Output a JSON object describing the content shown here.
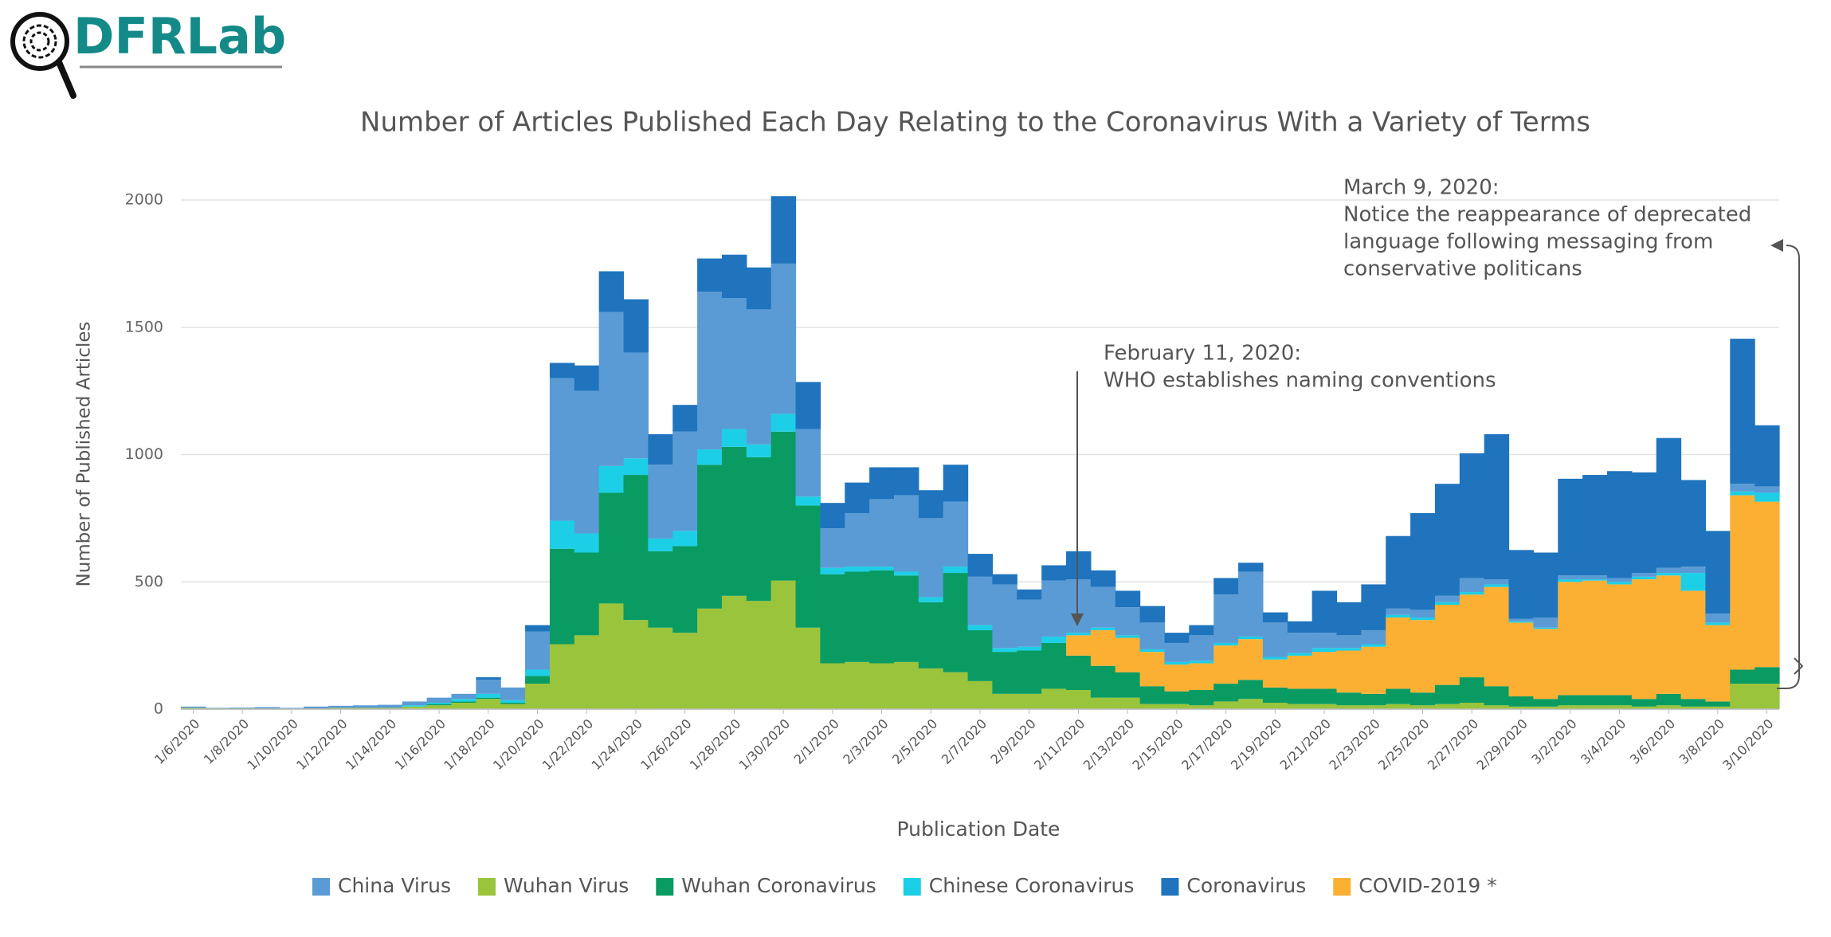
{
  "logo": "DFRLab",
  "chart_data": {
    "type": "stacked-step-area",
    "title": "Number of Articles Published Each Day Relating to the Coronavirus With a Variety of Terms",
    "xlabel": "Publication Date",
    "ylabel": "Number of Published Articles",
    "categories": [
      "1/6/2020",
      null,
      "1/8/2020",
      null,
      "1/10/2020",
      null,
      "1/12/2020",
      null,
      "1/14/2020",
      null,
      "1/16/2020",
      null,
      "1/18/2020",
      null,
      "1/20/2020",
      null,
      "1/22/2020",
      null,
      "1/24/2020",
      null,
      "1/26/2020",
      null,
      "1/28/2020",
      null,
      "1/30/2020",
      null,
      "2/1/2020",
      null,
      "2/3/2020",
      null,
      "2/5/2020",
      null,
      "2/7/2020",
      null,
      "2/9/2020",
      null,
      "2/11/2020",
      null,
      "2/13/2020",
      null,
      "2/15/2020",
      null,
      "2/17/2020",
      null,
      "2/19/2020",
      null,
      "2/21/2020",
      null,
      "2/23/2020",
      null,
      "2/25/2020",
      null,
      "2/27/2020",
      null,
      "2/29/2020",
      null,
      "3/2/2020",
      null,
      "3/4/2020",
      null,
      "3/6/2020",
      null,
      "3/8/2020",
      null,
      "3/10/2020"
    ],
    "series": [
      {
        "name": "China Virus",
        "color": "#5b9bd5",
        "values": [
          5,
          2,
          3,
          5,
          3,
          7,
          8,
          10,
          12,
          15,
          20,
          20,
          55,
          50,
          150,
          560,
          560,
          605,
          415,
          290,
          390,
          620,
          515,
          530,
          590,
          265,
          155,
          210,
          265,
          300,
          310,
          255,
          190,
          250,
          185,
          220,
          210,
          160,
          110,
          105,
          75,
          100,
          190,
          255,
          135,
          80,
          60,
          50,
          55,
          25,
          30,
          25,
          55,
          20,
          10,
          40,
          15,
          15,
          15,
          15,
          20,
          25,
          35,
          30,
          25
        ]
      },
      {
        "name": "Wuhan Virus",
        "color": "#9ac43b",
        "values": [
          5,
          3,
          3,
          3,
          2,
          3,
          5,
          5,
          5,
          10,
          15,
          25,
          40,
          20,
          100,
          255,
          290,
          415,
          350,
          320,
          300,
          395,
          445,
          425,
          505,
          320,
          180,
          185,
          180,
          185,
          160,
          145,
          110,
          60,
          60,
          80,
          75,
          45,
          45,
          20,
          20,
          15,
          30,
          40,
          25,
          20,
          20,
          15,
          15,
          20,
          15,
          20,
          25,
          15,
          10,
          10,
          15,
          15,
          15,
          10,
          15,
          10,
          10,
          100,
          100
        ]
      },
      {
        "name": "Wuhan Coronavirus",
        "color": "#0a9b63",
        "values": [
          0,
          0,
          0,
          0,
          0,
          0,
          0,
          0,
          0,
          0,
          5,
          5,
          5,
          5,
          30,
          375,
          325,
          435,
          570,
          300,
          340,
          565,
          585,
          565,
          585,
          480,
          350,
          355,
          365,
          340,
          260,
          390,
          200,
          165,
          170,
          180,
          135,
          125,
          100,
          70,
          50,
          60,
          70,
          75,
          60,
          60,
          60,
          50,
          45,
          60,
          50,
          75,
          100,
          75,
          40,
          30,
          40,
          40,
          40,
          30,
          45,
          30,
          20,
          55,
          65
        ]
      },
      {
        "name": "Chinese Coronavirus",
        "color": "#1ccfe6",
        "values": [
          0,
          0,
          0,
          0,
          0,
          0,
          0,
          0,
          0,
          5,
          5,
          10,
          15,
          10,
          25,
          110,
          75,
          105,
          65,
          50,
          60,
          60,
          70,
          50,
          70,
          35,
          25,
          20,
          15,
          15,
          20,
          25,
          20,
          15,
          15,
          25,
          10,
          10,
          10,
          10,
          10,
          10,
          10,
          10,
          10,
          10,
          15,
          10,
          10,
          10,
          10,
          10,
          10,
          10,
          5,
          5,
          10,
          5,
          10,
          10,
          10,
          70,
          10,
          15,
          35
        ]
      },
      {
        "name": "Coronavirus",
        "color": "#1f74bd",
        "values": [
          0,
          0,
          0,
          0,
          0,
          0,
          0,
          0,
          0,
          0,
          0,
          0,
          10,
          0,
          25,
          60,
          100,
          160,
          210,
          120,
          105,
          130,
          170,
          165,
          265,
          185,
          100,
          120,
          125,
          110,
          110,
          145,
          90,
          40,
          40,
          60,
          110,
          65,
          65,
          65,
          40,
          40,
          65,
          35,
          40,
          45,
          165,
          130,
          180,
          285,
          380,
          440,
          490,
          570,
          270,
          255,
          380,
          395,
          420,
          395,
          510,
          340,
          325,
          570,
          240
        ]
      },
      {
        "name": "COVID-2019 *",
        "color": "#fbb034",
        "values": [
          0,
          0,
          0,
          0,
          0,
          0,
          0,
          0,
          0,
          0,
          0,
          0,
          0,
          0,
          0,
          0,
          0,
          0,
          0,
          0,
          0,
          0,
          0,
          0,
          0,
          0,
          0,
          0,
          0,
          0,
          0,
          0,
          0,
          0,
          0,
          0,
          80,
          140,
          135,
          135,
          105,
          105,
          150,
          160,
          110,
          130,
          145,
          165,
          185,
          280,
          285,
          315,
          325,
          390,
          290,
          275,
          445,
          450,
          435,
          470,
          465,
          425,
          300,
          685,
          650
        ]
      }
    ],
    "ylim": [
      0,
      2000
    ],
    "yticks": [
      0,
      500,
      1000,
      1500,
      2000
    ],
    "grid": true,
    "legend": "bottom",
    "annotations": [
      {
        "lines": [
          "February 11, 2020:",
          "WHO establishes naming conventions"
        ]
      },
      {
        "lines": [
          "March 9, 2020:",
          "Notice the reappearance of deprecated",
          "language following messaging from",
          "conservative politicans"
        ]
      }
    ]
  }
}
